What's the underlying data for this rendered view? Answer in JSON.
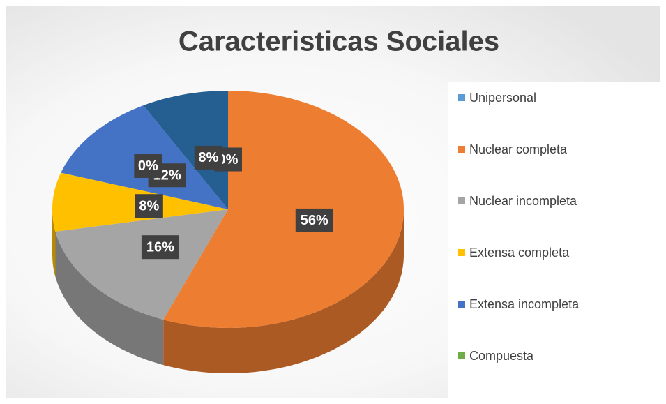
{
  "chart_data": {
    "type": "pie",
    "title": "Caracteristicas Sociales",
    "categories": [
      "Unipersonal",
      "Nuclear completa",
      "Nuclear incompleta",
      "Extensa completa",
      "Extensa incompleta",
      "Compuesta",
      null
    ],
    "values": [
      0,
      56,
      16,
      8,
      12,
      0,
      8
    ],
    "value_labels": [
      "0%",
      "56%",
      "16%",
      "8%",
      "12%",
      "0%",
      "8%"
    ],
    "colors": [
      "#5b9bd5",
      "#ed7d31",
      "#a5a5a5",
      "#ffc000",
      "#4472c4",
      "#70ad47",
      "#255e91"
    ],
    "legend": "right"
  }
}
